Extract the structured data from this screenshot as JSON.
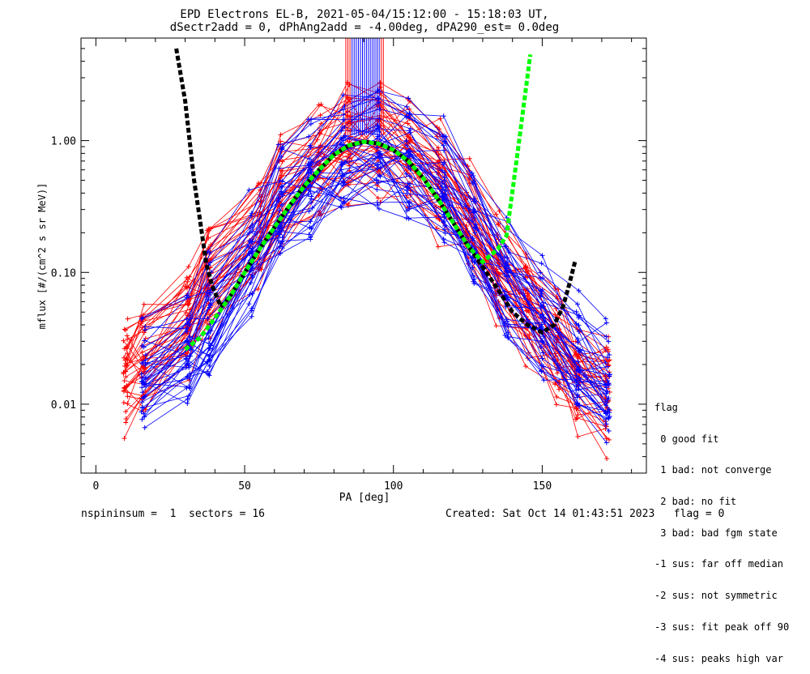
{
  "chart_data": {
    "type": "line",
    "title": "EPD Electrons EL-B, 2021-05-04/15:12:00 - 15:18:03 UT,",
    "subtitle": "dSectr2add = 0, dPhAng2add = -4.00deg, dPA290_est=   0.0deg",
    "xlabel": "PA [deg]",
    "ylabel": "mflux [#/(cm^2 s sr MeV)]",
    "x_ticks": [
      "0",
      "50",
      "100",
      "150"
    ],
    "y_ticks": [
      "0.01",
      "0.10",
      "1.00"
    ],
    "xlim": [
      -5,
      185
    ],
    "ylim": [
      0.003,
      6.0
    ],
    "y_scale": "log",
    "series": [
      {
        "color": "#ff0000",
        "x": [
          10,
          16,
          31,
          38,
          55,
          62,
          75,
          85,
          95,
          105,
          115,
          125,
          135,
          145,
          155,
          162,
          172
        ],
        "values": [
          0.015,
          0.02,
          0.04,
          0.08,
          0.2,
          0.35,
          0.7,
          0.85,
          0.9,
          0.8,
          0.5,
          0.25,
          0.1,
          0.05,
          0.025,
          0.015,
          0.012
        ]
      },
      {
        "color": "#0000ff",
        "x": [
          16,
          31,
          38,
          52,
          62,
          72,
          83,
          95,
          105,
          117,
          127,
          138,
          150,
          162,
          172
        ],
        "values": [
          0.02,
          0.03,
          0.05,
          0.15,
          0.35,
          0.6,
          0.9,
          0.95,
          0.8,
          0.5,
          0.25,
          0.1,
          0.05,
          0.025,
          0.015
        ]
      },
      {
        "color": "#00ff00",
        "x": [
          30,
          35,
          40,
          45,
          50,
          55,
          60,
          65,
          70,
          75,
          80,
          85,
          90,
          95,
          100,
          105,
          110,
          115,
          120,
          125,
          130,
          135,
          138,
          142,
          146
        ],
        "values": [
          0.026,
          0.032,
          0.045,
          0.065,
          0.1,
          0.15,
          0.22,
          0.32,
          0.45,
          0.6,
          0.78,
          0.92,
          0.98,
          0.95,
          0.85,
          0.7,
          0.52,
          0.36,
          0.24,
          0.16,
          0.12,
          0.15,
          0.19,
          0.9,
          4.5
        ]
      },
      {
        "color": "#000000",
        "x": [
          27,
          30,
          33,
          35,
          37,
          39,
          42,
          45,
          50,
          55,
          60,
          65,
          70,
          75,
          80,
          85,
          90,
          95,
          100,
          105,
          110,
          115,
          120,
          125,
          130,
          135,
          140,
          145,
          150,
          154,
          157,
          159,
          161
        ],
        "values": [
          5.0,
          2.0,
          0.5,
          0.25,
          0.12,
          0.08,
          0.055,
          0.065,
          0.1,
          0.15,
          0.22,
          0.32,
          0.45,
          0.6,
          0.78,
          0.92,
          0.98,
          0.95,
          0.85,
          0.7,
          0.52,
          0.36,
          0.24,
          0.16,
          0.11,
          0.075,
          0.05,
          0.04,
          0.035,
          0.04,
          0.055,
          0.08,
          0.12
        ]
      }
    ]
  },
  "legend": {
    "title": "flag",
    "entries": [
      " 0 good fit",
      " 1 bad: not converge",
      " 2 bad: no fit",
      " 3 bad: bad fgm state",
      "-1 sus: far off median",
      "-2 sus: not symmetric",
      "-3 sus: fit peak off 90",
      "-4 sus: peaks high var"
    ]
  },
  "footer": {
    "left": "nspininsum =  1  sectors = 16",
    "right": "Created: Sat Oct 14 01:43:51 2023   flag = 0"
  },
  "colors": {
    "red": "#ff0000",
    "blue": "#0000ff",
    "fit": "#00ff00",
    "model": "#000000"
  }
}
